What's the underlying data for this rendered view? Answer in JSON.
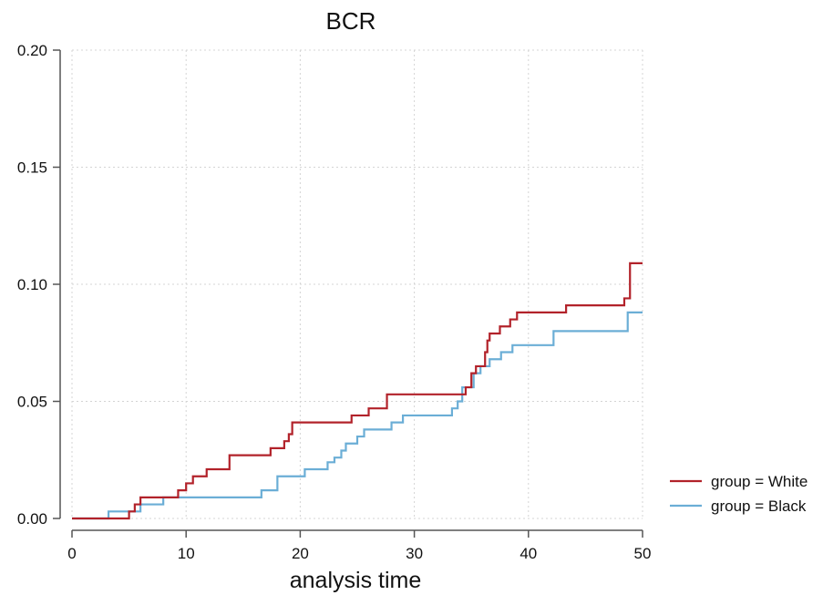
{
  "chart_data": {
    "type": "line",
    "title": "BCR",
    "xlabel": "analysis time",
    "ylabel": "",
    "xlim": [
      0,
      50
    ],
    "ylim": [
      0,
      0.2
    ],
    "xticks": [
      "0",
      "10",
      "20",
      "30",
      "40",
      "50"
    ],
    "yticks": [
      "0.00",
      "0.05",
      "0.10",
      "0.15",
      "0.20"
    ],
    "grid": true,
    "legend_position": "right",
    "step": true,
    "series": [
      {
        "name": "group = White",
        "color": "#b2222a",
        "x": [
          0,
          5.0,
          5.5,
          6.0,
          6.5,
          8.0,
          9.3,
          10.0,
          10.6,
          11.8,
          13.8,
          17.4,
          18.6,
          19.0,
          19.3,
          22.0,
          24.5,
          26.0,
          27.6,
          33.8,
          34.5,
          35.0,
          35.4,
          36.2,
          36.4,
          36.6,
          37.5,
          38.4,
          39.0,
          43.3,
          48.4,
          48.9,
          50.0
        ],
        "y": [
          0.0,
          0.003,
          0.006,
          0.009,
          0.009,
          0.009,
          0.012,
          0.015,
          0.018,
          0.021,
          0.027,
          0.03,
          0.033,
          0.036,
          0.041,
          0.041,
          0.044,
          0.047,
          0.053,
          0.053,
          0.056,
          0.062,
          0.065,
          0.071,
          0.076,
          0.079,
          0.082,
          0.085,
          0.088,
          0.091,
          0.094,
          0.109,
          0.109
        ]
      },
      {
        "name": "group = Black",
        "color": "#6baed6",
        "x": [
          0,
          3.2,
          4.4,
          6.0,
          7.0,
          8.0,
          16.6,
          18.0,
          20.4,
          22.4,
          23.0,
          23.6,
          24.0,
          25.0,
          25.6,
          28.0,
          29.0,
          33.3,
          33.8,
          34.2,
          35.2,
          35.8,
          36.6,
          37.6,
          38.6,
          42.2,
          48.7,
          50.0
        ],
        "y": [
          0.0,
          0.003,
          0.003,
          0.006,
          0.006,
          0.009,
          0.012,
          0.018,
          0.021,
          0.024,
          0.026,
          0.029,
          0.032,
          0.035,
          0.038,
          0.041,
          0.044,
          0.047,
          0.05,
          0.056,
          0.062,
          0.065,
          0.068,
          0.071,
          0.074,
          0.08,
          0.088,
          0.088
        ]
      }
    ]
  }
}
